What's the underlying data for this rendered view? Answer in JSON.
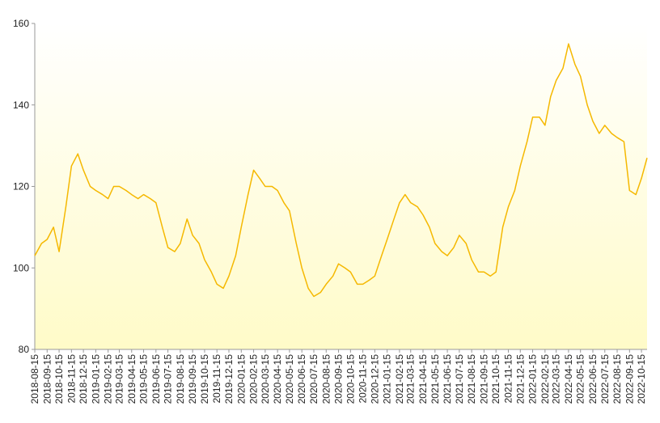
{
  "chart_data": {
    "type": "line",
    "color": "#f5b800",
    "x": [
      "2018-08-15",
      "2018-09-01",
      "2018-09-15",
      "2018-10-01",
      "2018-10-15",
      "2018-11-01",
      "2018-11-15",
      "2018-12-01",
      "2018-12-15",
      "2019-01-01",
      "2019-01-15",
      "2019-02-01",
      "2019-02-15",
      "2019-03-01",
      "2019-03-15",
      "2019-04-01",
      "2019-04-15",
      "2019-05-01",
      "2019-05-15",
      "2019-06-01",
      "2019-06-15",
      "2019-07-01",
      "2019-07-15",
      "2019-08-01",
      "2019-08-15",
      "2019-09-01",
      "2019-09-15",
      "2019-10-01",
      "2019-10-15",
      "2019-11-01",
      "2019-11-15",
      "2019-12-01",
      "2019-12-15",
      "2020-01-01",
      "2020-01-15",
      "2020-02-01",
      "2020-02-15",
      "2020-03-01",
      "2020-03-15",
      "2020-04-01",
      "2020-04-15",
      "2020-05-01",
      "2020-05-15",
      "2020-06-01",
      "2020-06-15",
      "2020-07-01",
      "2020-07-15",
      "2020-08-01",
      "2020-08-15",
      "2020-09-01",
      "2020-09-15",
      "2020-10-01",
      "2020-10-15",
      "2020-11-01",
      "2020-11-15",
      "2020-12-01",
      "2020-12-15",
      "2021-01-01",
      "2021-01-15",
      "2021-02-01",
      "2021-02-15",
      "2021-03-01",
      "2021-03-15",
      "2021-04-01",
      "2021-04-15",
      "2021-05-01",
      "2021-05-15",
      "2021-06-01",
      "2021-06-15",
      "2021-07-01",
      "2021-07-15",
      "2021-08-01",
      "2021-08-15",
      "2021-09-01",
      "2021-09-15",
      "2021-10-01",
      "2021-10-15",
      "2021-11-01",
      "2021-11-15",
      "2021-12-01",
      "2021-12-15",
      "2022-01-01",
      "2022-01-15",
      "2022-02-01",
      "2022-02-15",
      "2022-03-01",
      "2022-03-15",
      "2022-04-01",
      "2022-04-15",
      "2022-05-01",
      "2022-05-15",
      "2022-06-01",
      "2022-06-15",
      "2022-07-01",
      "2022-07-15",
      "2022-08-01",
      "2022-08-15",
      "2022-09-01",
      "2022-09-15",
      "2022-10-01",
      "2022-10-15",
      "2022-10-29"
    ],
    "values": [
      103,
      106,
      107,
      110,
      104,
      115,
      125,
      128,
      124,
      120,
      119,
      118,
      117,
      120,
      120,
      119,
      118,
      117,
      118,
      117,
      116,
      110,
      105,
      104,
      106,
      112,
      108,
      106,
      102,
      99,
      96,
      95,
      98,
      103,
      110,
      118,
      124,
      122,
      120,
      120,
      119,
      116,
      114,
      106,
      100,
      95,
      93,
      94,
      96,
      98,
      101,
      100,
      99,
      96,
      96,
      97,
      98,
      103,
      107,
      112,
      116,
      118,
      116,
      115,
      113,
      110,
      106,
      104,
      103,
      105,
      108,
      106,
      102,
      99,
      99,
      98,
      99,
      110,
      115,
      119,
      125,
      131,
      137,
      137,
      135,
      142,
      146,
      149,
      155,
      150,
      147,
      140,
      136,
      133,
      135,
      133,
      132,
      131,
      119,
      118,
      122,
      127
    ],
    "xlim": [
      "2018-08-15",
      "2022-10-29"
    ],
    "xticks": [
      "2018-08-15",
      "2018-09-15",
      "2018-10-15",
      "2018-11-15",
      "2018-12-15",
      "2019-01-15",
      "2019-02-15",
      "2019-03-15",
      "2019-04-15",
      "2019-05-15",
      "2019-06-15",
      "2019-07-15",
      "2019-08-15",
      "2019-09-15",
      "2019-10-15",
      "2019-11-15",
      "2019-12-15",
      "2020-01-15",
      "2020-02-15",
      "2020-03-15",
      "2020-04-15",
      "2020-05-15",
      "2020-06-15",
      "2020-07-15",
      "2020-08-15",
      "2020-09-15",
      "2020-10-15",
      "2020-11-15",
      "2020-12-15",
      "2021-01-15",
      "2021-02-15",
      "2021-03-15",
      "2021-04-15",
      "2021-05-15",
      "2021-06-15",
      "2021-07-15",
      "2021-08-15",
      "2021-09-15",
      "2021-10-15",
      "2021-11-15",
      "2021-12-15",
      "2022-01-15",
      "2022-02-15",
      "2022-03-15",
      "2022-04-15",
      "2022-05-15",
      "2022-06-15",
      "2022-07-15",
      "2022-08-15",
      "2022-09-15",
      "2022-10-15"
    ],
    "ylim": [
      80,
      160
    ],
    "yticks": [
      80,
      100,
      120,
      140,
      160
    ]
  }
}
